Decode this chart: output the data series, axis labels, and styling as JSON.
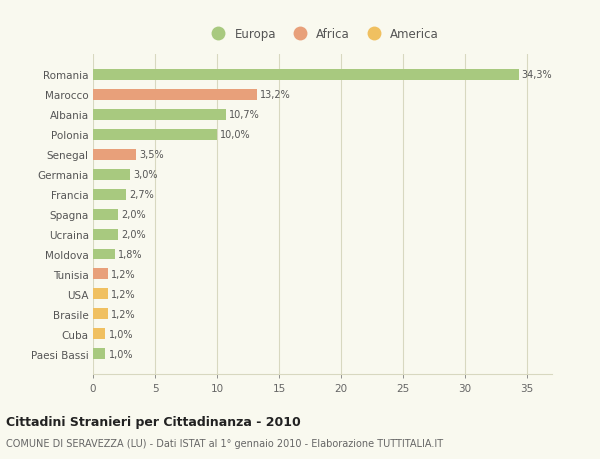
{
  "countries": [
    "Romania",
    "Marocco",
    "Albania",
    "Polonia",
    "Senegal",
    "Germania",
    "Francia",
    "Spagna",
    "Ucraina",
    "Moldova",
    "Tunisia",
    "USA",
    "Brasile",
    "Cuba",
    "Paesi Bassi"
  ],
  "values": [
    34.3,
    13.2,
    10.7,
    10.0,
    3.5,
    3.0,
    2.7,
    2.0,
    2.0,
    1.8,
    1.2,
    1.2,
    1.2,
    1.0,
    1.0
  ],
  "labels": [
    "34,3%",
    "13,2%",
    "10,7%",
    "10,0%",
    "3,5%",
    "3,0%",
    "2,7%",
    "2,0%",
    "2,0%",
    "1,8%",
    "1,2%",
    "1,2%",
    "1,2%",
    "1,0%",
    "1,0%"
  ],
  "continents": [
    "Europa",
    "Africa",
    "Europa",
    "Europa",
    "Africa",
    "Europa",
    "Europa",
    "Europa",
    "Europa",
    "Europa",
    "Africa",
    "America",
    "America",
    "America",
    "Europa"
  ],
  "colors": {
    "Europa": "#a8c97f",
    "Africa": "#e8a07a",
    "America": "#f0c060"
  },
  "xlim": [
    0,
    37
  ],
  "xticks": [
    0,
    5,
    10,
    15,
    20,
    25,
    30,
    35
  ],
  "title": "Cittadini Stranieri per Cittadinanza - 2010",
  "subtitle": "COMUNE DI SERAVEZZA (LU) - Dati ISTAT al 1° gennaio 2010 - Elaborazione TUTTITALIA.IT",
  "bg_color": "#f9f9ef",
  "grid_color": "#d8d8c0"
}
